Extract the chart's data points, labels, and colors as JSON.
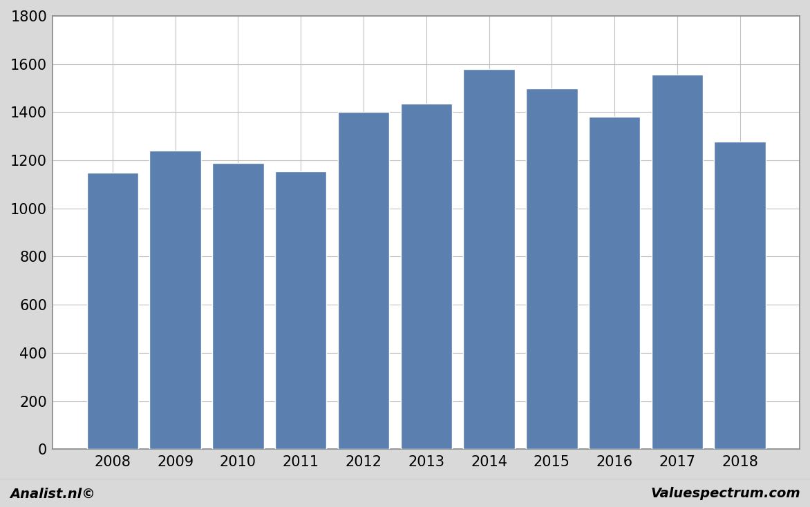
{
  "categories": [
    "2008",
    "2009",
    "2010",
    "2011",
    "2012",
    "2013",
    "2014",
    "2015",
    "2016",
    "2017",
    "2018"
  ],
  "values": [
    1150,
    1240,
    1190,
    1155,
    1400,
    1435,
    1580,
    1498,
    1380,
    1555,
    1278
  ],
  "bar_color": "#5b80b0",
  "background_color": "#d9d9d9",
  "plot_background_color": "#ffffff",
  "ylim": [
    0,
    1800
  ],
  "yticks": [
    0,
    200,
    400,
    600,
    800,
    1000,
    1200,
    1400,
    1600,
    1800
  ],
  "grid_color": "#c0c0c0",
  "footer_left": "Analist.nl©",
  "footer_right": "Valuespectrum.com",
  "footer_fontsize": 14,
  "tick_fontsize": 15,
  "border_color": "#888888",
  "bar_width": 0.82
}
